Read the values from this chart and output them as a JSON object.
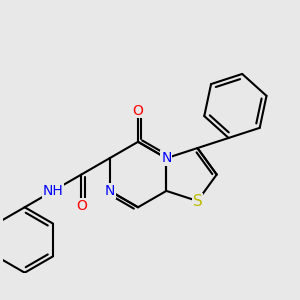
{
  "background_color": "#e8e8e8",
  "bond_color": "#000000",
  "bond_width": 1.5,
  "N_color": "#0000ff",
  "O_color": "#ff0000",
  "S_color": "#bbbb00",
  "font_size": 10,
  "fig_size": [
    3.0,
    3.0
  ],
  "dpi": 100,
  "xlim": [
    -2.5,
    6.5
  ],
  "ylim": [
    -3.0,
    4.5
  ]
}
